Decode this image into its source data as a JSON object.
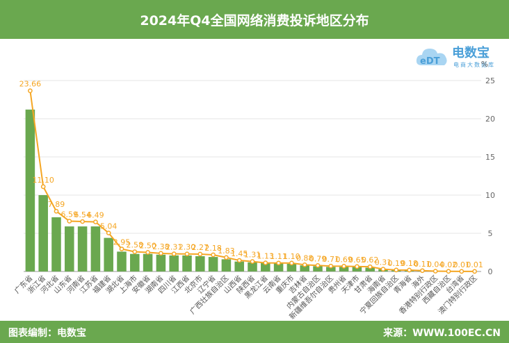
{
  "header": {
    "title": "2024年Q4全国网络消费投诉地区分布"
  },
  "footer": {
    "left": "图表编制：电数宝",
    "right": "来源：WWW.100EC.CN"
  },
  "logo": {
    "name": "电数宝",
    "sub": "电商大数据库",
    "icon": "cloud-logo-icon",
    "mark": "eDT"
  },
  "colors": {
    "bar": "#6aa84f",
    "line": "#f5a623",
    "header": "#6aa84f",
    "axis": "#888888"
  },
  "chart_data": {
    "type": "bar",
    "unit": "%",
    "categories": [
      "广东省",
      "浙江省",
      "河北省",
      "山东省",
      "河南省",
      "江苏省",
      "福建省",
      "湖北省",
      "上海市",
      "安徽省",
      "湖南省",
      "四川省",
      "江西省",
      "北京市",
      "辽宁省",
      "广西壮族自治区",
      "山西省",
      "陕西省",
      "黑龙江省",
      "云南省",
      "重庆市",
      "吉林省",
      "内蒙古自治区",
      "新疆维吾尔自治区",
      "贵州省",
      "天津市",
      "甘肃省",
      "海南省",
      "宁夏回族自治区",
      "青海省",
      "海外",
      "香港特别行政区",
      "西藏自治区",
      "台湾省",
      "澳门特别行政区"
    ],
    "bar_values": [
      21.2,
      10.0,
      7.1,
      5.9,
      5.9,
      5.9,
      4.4,
      2.6,
      2.3,
      2.3,
      2.2,
      2.1,
      2.1,
      2.0,
      1.9,
      1.6,
      1.3,
      1.2,
      1.1,
      1.1,
      1.0,
      0.8,
      0.7,
      0.6,
      0.6,
      0.6,
      0.5,
      0.3,
      0.2,
      0.2,
      0.1,
      0.04,
      0.02,
      0.01,
      0.01
    ],
    "line_values": [
      23.66,
      11.1,
      7.89,
      6.59,
      6.54,
      6.49,
      5.04,
      2.95,
      2.58,
      2.5,
      2.38,
      2.31,
      2.3,
      2.27,
      2.18,
      1.83,
      1.45,
      1.31,
      1.13,
      1.11,
      1.1,
      0.88,
      0.79,
      0.71,
      0.69,
      0.65,
      0.62,
      0.31,
      0.19,
      0.18,
      0.11,
      0.04,
      0.02,
      0.01,
      0.01
    ],
    "line_labels": [
      "23.66",
      "11.10",
      "7.89",
      "6.59",
      "6.54",
      "6.49",
      "5.04",
      "2.95",
      "2.58",
      "2.50",
      "2.38",
      "2.31",
      "2.30",
      "2.27",
      "2.18",
      "1.83",
      "1.45",
      "1.31",
      "1.13",
      "1.11",
      "1.10",
      "0.88",
      "0.79",
      "0.71",
      "0.69",
      "0.65",
      "0.62",
      "0.31",
      "0.19",
      "0.18",
      "0.11",
      "0.04",
      "0.02",
      "0.01",
      "0.01"
    ],
    "ylim": [
      0,
      25
    ],
    "yticks": [
      "0",
      "5",
      "10",
      "15",
      "20",
      "25"
    ],
    "y_axis_position": "right",
    "grid": true
  }
}
